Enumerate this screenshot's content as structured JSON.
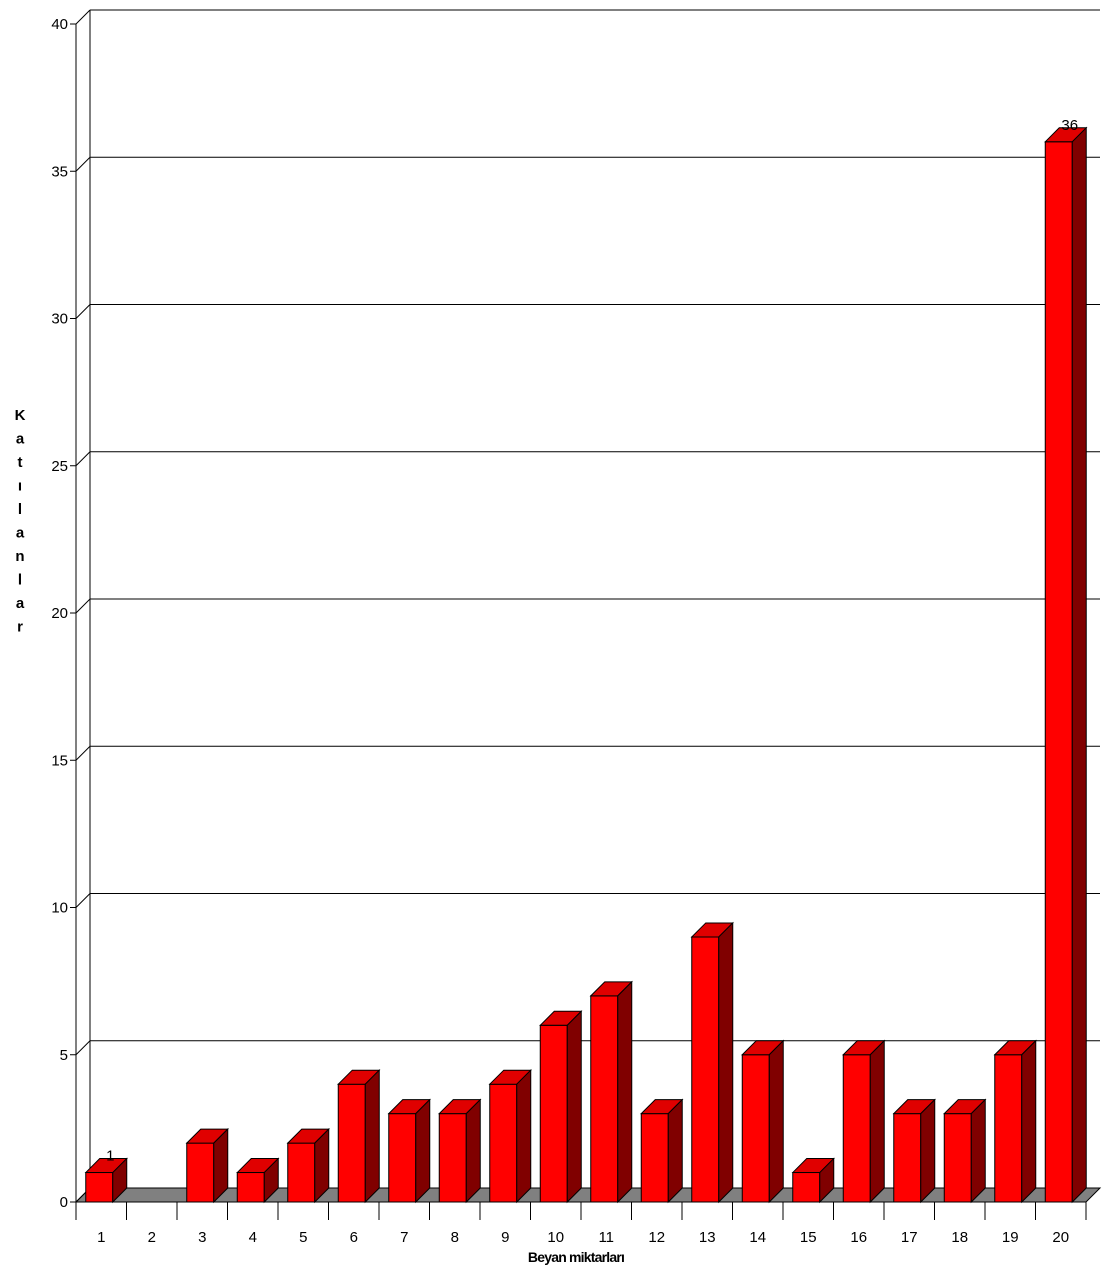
{
  "chart_data": {
    "type": "bar",
    "categories": [
      "1",
      "2",
      "3",
      "4",
      "5",
      "6",
      "7",
      "8",
      "9",
      "10",
      "11",
      "12",
      "13",
      "14",
      "15",
      "16",
      "17",
      "18",
      "19",
      "20"
    ],
    "values": [
      1,
      0,
      2,
      1,
      2,
      4,
      3,
      3,
      4,
      6,
      7,
      3,
      9,
      5,
      1,
      5,
      3,
      3,
      5,
      36
    ],
    "xlabel": "Beyan miktarları",
    "ylabel": "Katılanlar",
    "ylim": [
      0,
      40
    ],
    "yticks": [
      0,
      5,
      10,
      15,
      20,
      25,
      30,
      35,
      40
    ],
    "data_labels": {
      "0": "1",
      "19": "36"
    },
    "grid": true,
    "three_d": true,
    "colors": {
      "bar_front": "#ff0000",
      "bar_top": "#e00000",
      "bar_side": "#800000",
      "floor": "#808080"
    }
  }
}
